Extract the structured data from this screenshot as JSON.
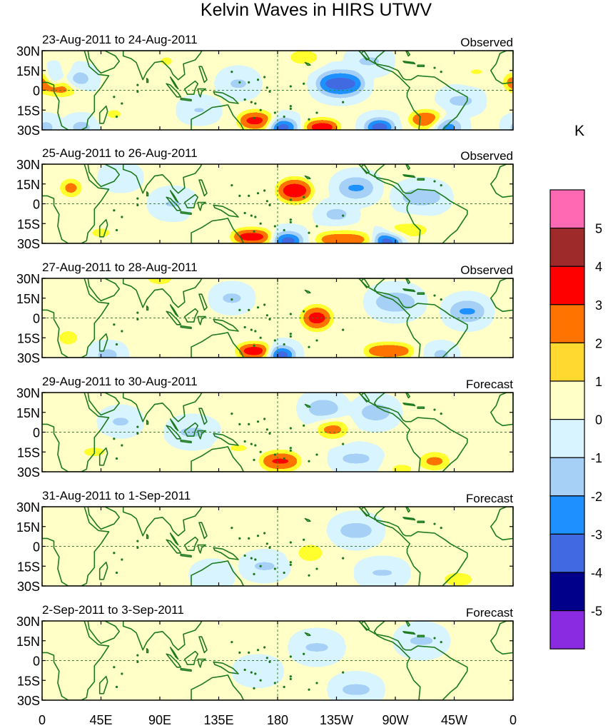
{
  "chart_data": {
    "type": "heatmap",
    "title": "Kelvin Waves in HIRS UTWV",
    "units": "K",
    "y_ticks": [
      "30N",
      "15N",
      "0",
      "15S",
      "30S"
    ],
    "x_ticks": [
      "0",
      "45E",
      "90E",
      "135E",
      "180",
      "135W",
      "90W",
      "45W",
      "0"
    ],
    "colorbar": {
      "labels": [
        "5",
        "4",
        "3",
        "2",
        "1",
        "0",
        "-1",
        "-2",
        "-3",
        "-4",
        "-5"
      ],
      "colors": [
        "#ff69b4",
        "#9e2a2a",
        "#ff0000",
        "#ff7300",
        "#ffd92f",
        "#ffffc8",
        "#d8f4ff",
        "#a6d0f5",
        "#1e90ff",
        "#4169e1",
        "#00008b",
        "#8a2be2"
      ]
    },
    "panels": [
      {
        "date_range": "23-Aug-2011 to 24-Aug-2011",
        "status": "Observed",
        "anomalies": [
          {
            "lon": 375,
            "lat": 6,
            "value": 3.5,
            "sx": 22,
            "sy": 9
          },
          {
            "lon": 228,
            "lat": 5,
            "value": -3.4,
            "sx": 18,
            "sy": 9
          },
          {
            "lon": 200,
            "lat": 25,
            "value": 2,
            "sx": 13,
            "sy": 5
          },
          {
            "lon": 163,
            "lat": -23,
            "value": 3.5,
            "sx": 14,
            "sy": 7
          },
          {
            "lon": 184,
            "lat": -28,
            "value": -4.2,
            "sx": 11,
            "sy": 5
          },
          {
            "lon": 214,
            "lat": -28,
            "value": 4.5,
            "sx": 14,
            "sy": 5
          },
          {
            "lon": 258,
            "lat": -28,
            "value": -4.6,
            "sx": 11,
            "sy": 5
          },
          {
            "lon": 293,
            "lat": -22,
            "value": 3.4,
            "sx": 13,
            "sy": 6
          },
          {
            "lon": 310,
            "lat": -28,
            "value": -3,
            "sx": 11,
            "sy": 5
          },
          {
            "lon": 28,
            "lat": 8,
            "value": -1.7,
            "sx": 10,
            "sy": 7
          },
          {
            "lon": 10,
            "lat": 10,
            "value": -1.5,
            "sx": 7,
            "sy": 6
          },
          {
            "lon": 95,
            "lat": 22,
            "value": 1.5,
            "sx": 9,
            "sy": 5
          },
          {
            "lon": 30,
            "lat": -28,
            "value": -2.3,
            "sx": 9,
            "sy": 4
          },
          {
            "lon": 3,
            "lat": -28,
            "value": -2.4,
            "sx": 7,
            "sy": 4
          },
          {
            "lon": 55,
            "lat": -18,
            "value": 1.5,
            "sx": 10,
            "sy": 5
          },
          {
            "lon": 120,
            "lat": -15,
            "value": -1.3,
            "sx": 12,
            "sy": 5
          },
          {
            "lon": 150,
            "lat": 5,
            "value": -1.2,
            "sx": 12,
            "sy": 7
          },
          {
            "lon": 332,
            "lat": 14,
            "value": 1.3,
            "sx": 12,
            "sy": 5
          },
          {
            "lon": 250,
            "lat": 22,
            "value": -1.3,
            "sx": 14,
            "sy": 6
          },
          {
            "lon": 320,
            "lat": -8,
            "value": -1.4,
            "sx": 14,
            "sy": 6
          }
        ]
      },
      {
        "date_range": "25-Aug-2011 to 26-Aug-2011",
        "status": "Observed",
        "anomalies": [
          {
            "lon": 193,
            "lat": 10,
            "value": 3.6,
            "sx": 14,
            "sy": 9
          },
          {
            "lon": 160,
            "lat": -25,
            "value": 4.4,
            "sx": 16,
            "sy": 5
          },
          {
            "lon": 188,
            "lat": -28,
            "value": -4.3,
            "sx": 11,
            "sy": 5
          },
          {
            "lon": 230,
            "lat": -27,
            "value": 3.4,
            "sx": 22,
            "sy": 5
          },
          {
            "lon": 265,
            "lat": -28,
            "value": -4.5,
            "sx": 11,
            "sy": 5
          },
          {
            "lon": 280,
            "lat": -20,
            "value": 1.6,
            "sx": 18,
            "sy": 6
          },
          {
            "lon": 22,
            "lat": 12,
            "value": 3,
            "sx": 8,
            "sy": 6
          },
          {
            "lon": 45,
            "lat": -22,
            "value": 1.5,
            "sx": 12,
            "sy": 5
          },
          {
            "lon": 290,
            "lat": 5,
            "value": -1.5,
            "sx": 18,
            "sy": 8
          },
          {
            "lon": 240,
            "lat": 12,
            "value": -2.2,
            "sx": 14,
            "sy": 8
          },
          {
            "lon": 225,
            "lat": -8,
            "value": -1.5,
            "sx": 12,
            "sy": 6
          },
          {
            "lon": 100,
            "lat": 0,
            "value": -1.1,
            "sx": 14,
            "sy": 7
          },
          {
            "lon": 130,
            "lat": -5,
            "value": 1.2,
            "sx": 14,
            "sy": 5
          },
          {
            "lon": 60,
            "lat": 20,
            "value": -1.2,
            "sx": 12,
            "sy": 5
          }
        ]
      },
      {
        "date_range": "27-Aug-2011 to 28-Aug-2011",
        "status": "Observed",
        "anomalies": [
          {
            "lon": 210,
            "lat": 0,
            "value": 3.4,
            "sx": 12,
            "sy": 9
          },
          {
            "lon": 162,
            "lat": -25,
            "value": 4.5,
            "sx": 14,
            "sy": 5
          },
          {
            "lon": 183,
            "lat": -28,
            "value": -4.5,
            "sx": 10,
            "sy": 5
          },
          {
            "lon": 265,
            "lat": -25,
            "value": 3.6,
            "sx": 20,
            "sy": 5
          },
          {
            "lon": 270,
            "lat": 12,
            "value": -1.5,
            "sx": 18,
            "sy": 9
          },
          {
            "lon": 325,
            "lat": 5,
            "value": -2.2,
            "sx": 14,
            "sy": 8
          },
          {
            "lon": 20,
            "lat": -15,
            "value": 1.5,
            "sx": 10,
            "sy": 7
          },
          {
            "lon": 50,
            "lat": -28,
            "value": -2.3,
            "sx": 10,
            "sy": 4
          },
          {
            "lon": 90,
            "lat": 30,
            "value": 2.2,
            "sx": 12,
            "sy": 4
          },
          {
            "lon": 145,
            "lat": 15,
            "value": -1.4,
            "sx": 12,
            "sy": 6
          },
          {
            "lon": 305,
            "lat": -28,
            "value": -2.2,
            "sx": 8,
            "sy": 4
          },
          {
            "lon": 115,
            "lat": -8,
            "value": 1.1,
            "sx": 14,
            "sy": 6
          }
        ]
      },
      {
        "date_range": "29-Aug-2011 to 30-Aug-2011",
        "status": "Forecast",
        "anomalies": [
          {
            "lon": 182,
            "lat": -22,
            "value": 3.3,
            "sx": 16,
            "sy": 7
          },
          {
            "lon": 222,
            "lat": 2,
            "value": 2.7,
            "sx": 12,
            "sy": 6
          },
          {
            "lon": 300,
            "lat": -22,
            "value": 2.6,
            "sx": 12,
            "sy": 6
          },
          {
            "lon": 275,
            "lat": -28,
            "value": 1.8,
            "sx": 12,
            "sy": 4
          },
          {
            "lon": 215,
            "lat": 18,
            "value": -1.6,
            "sx": 14,
            "sy": 8
          },
          {
            "lon": 255,
            "lat": 15,
            "value": -1.5,
            "sx": 14,
            "sy": 8
          },
          {
            "lon": 40,
            "lat": -15,
            "value": 1.3,
            "sx": 14,
            "sy": 6
          },
          {
            "lon": 60,
            "lat": 8,
            "value": -1.3,
            "sx": 12,
            "sy": 6
          },
          {
            "lon": 115,
            "lat": 0,
            "value": -1.2,
            "sx": 16,
            "sy": 7
          },
          {
            "lon": 240,
            "lat": -20,
            "value": -1.4,
            "sx": 16,
            "sy": 6
          },
          {
            "lon": 150,
            "lat": -12,
            "value": 1.2,
            "sx": 14,
            "sy": 6
          }
        ]
      },
      {
        "date_range": "31-Aug-2011 to 1-Sep-2011",
        "status": "Forecast",
        "anomalies": [
          {
            "lon": 205,
            "lat": -5,
            "value": 1.5,
            "sx": 12,
            "sy": 8
          },
          {
            "lon": 318,
            "lat": -25,
            "value": 1.6,
            "sx": 14,
            "sy": 6
          },
          {
            "lon": 240,
            "lat": 12,
            "value": -1.4,
            "sx": 16,
            "sy": 8
          },
          {
            "lon": 260,
            "lat": -20,
            "value": -1.2,
            "sx": 16,
            "sy": 6
          },
          {
            "lon": 170,
            "lat": -15,
            "value": -1.3,
            "sx": 14,
            "sy": 6
          },
          {
            "lon": 80,
            "lat": 0,
            "value": 0.5,
            "sx": 20,
            "sy": 10
          },
          {
            "lon": 130,
            "lat": -22,
            "value": -1.1,
            "sx": 12,
            "sy": 6
          }
        ]
      },
      {
        "date_range": "2-Sep-2011 to 3-Sep-2011",
        "status": "Forecast",
        "anomalies": [
          {
            "lon": 240,
            "lat": -22,
            "value": -1.3,
            "sx": 16,
            "sy": 7
          },
          {
            "lon": 210,
            "lat": 10,
            "value": -1.1,
            "sx": 16,
            "sy": 8
          },
          {
            "lon": 290,
            "lat": 15,
            "value": -1.1,
            "sx": 16,
            "sy": 8
          },
          {
            "lon": 20,
            "lat": -28,
            "value": 1.3,
            "sx": 10,
            "sy": 4
          },
          {
            "lon": 320,
            "lat": -15,
            "value": 1.2,
            "sx": 10,
            "sy": 5
          },
          {
            "lon": 165,
            "lat": -8,
            "value": -1.1,
            "sx": 14,
            "sy": 6
          }
        ]
      }
    ]
  }
}
